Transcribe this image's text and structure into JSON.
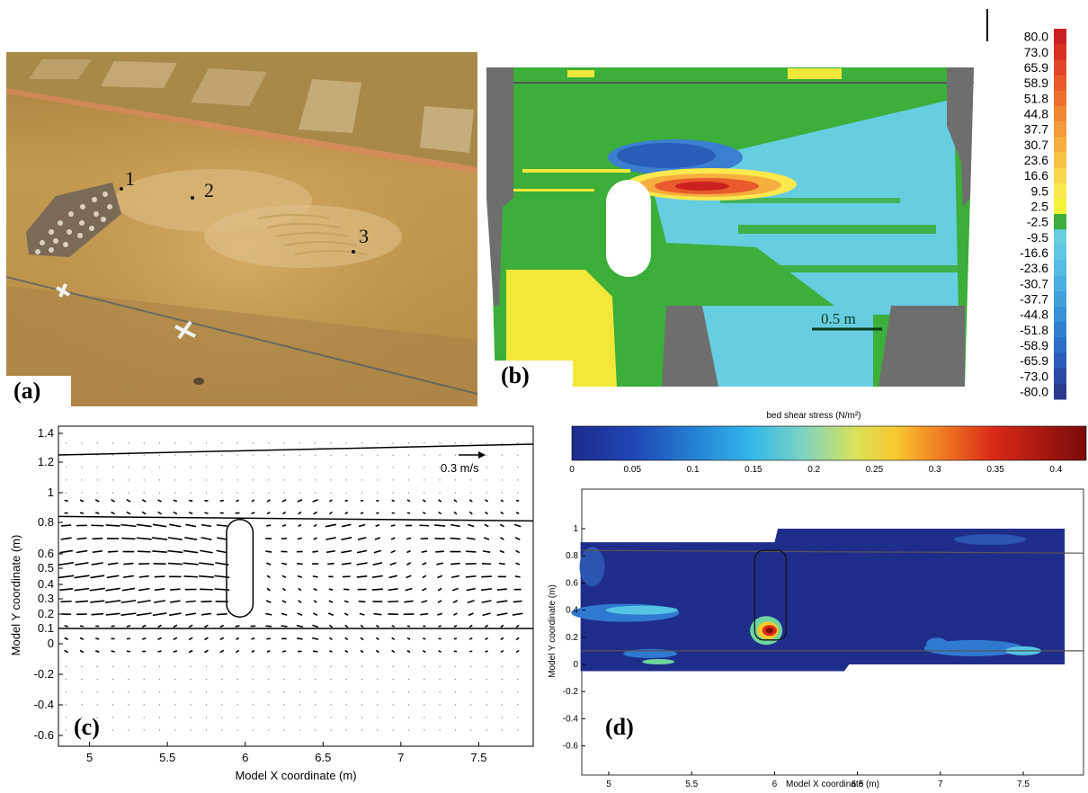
{
  "panel_a": {
    "label": "(a)",
    "markers": [
      "1",
      "2",
      "3"
    ]
  },
  "panel_b": {
    "label": "(b)",
    "scale_label": "0.5 m",
    "colorbar_ticks": [
      "80.0",
      "73.0",
      "65.9",
      "58.9",
      "51.8",
      "44.8",
      "37.7",
      "30.7",
      "23.6",
      "16.6",
      "9.5",
      "2.5",
      "-2.5",
      "-9.5",
      "-16.6",
      "-23.6",
      "-30.7",
      "-37.7",
      "-44.8",
      "-51.8",
      "-58.9",
      "-65.9",
      "-73.0",
      "-80.0"
    ],
    "colorbar_colors": [
      "#cc1f1f",
      "#d93020",
      "#e2452a",
      "#e95a2c",
      "#ee702d",
      "#f18633",
      "#f39a3a",
      "#f6ae3f",
      "#f8c243",
      "#fad649",
      "#fbe94e",
      "#f5f23a",
      "#3cae3a",
      "#67cde1",
      "#5ec5e2",
      "#54bbe2",
      "#4aaee0",
      "#41a0dc",
      "#3890d6",
      "#3080cf",
      "#2b6fc4",
      "#2a5db7",
      "#2a4aa5",
      "#283a8f"
    ]
  },
  "panel_c": {
    "label": "(c)",
    "xlabel": "Model X coordinate (m)",
    "ylabel": "Model Y coordinate (m)",
    "xticks": [
      "5",
      "5.5",
      "6",
      "6.5",
      "7",
      "7.5"
    ],
    "yticks": [
      "1.4",
      "1.2",
      "1",
      "0.8",
      "0.6",
      "0.5",
      "0.4",
      "0.3",
      "0.2",
      "0.1",
      "0",
      "-0.2",
      "-0.4",
      "-0.6"
    ],
    "legend_label": "0.3 m/s"
  },
  "panel_d": {
    "label": "(d)",
    "colorbar_title": "bed shear stress (N/m²)",
    "colorbar_ticks": [
      "0",
      "0.05",
      "0.1",
      "0.15",
      "0.2",
      "0.25",
      "0.3",
      "0.35",
      "0.4"
    ],
    "xlabel": "Model X coordinate (m)",
    "ylabel": "Model Y coordinate (m)",
    "xticks": [
      "5",
      "5.5",
      "6",
      "6.5",
      "7",
      "7.5"
    ],
    "yticks": [
      "1",
      "0.8",
      "0.6",
      "0.4",
      "0.2",
      "0",
      "-0.2",
      "-0.4",
      "-0.6"
    ]
  },
  "colors": {
    "sand": "#c69a52",
    "green": "#3cae3a",
    "lightblue": "#67cde1",
    "grey": "#6e6e6e",
    "yellow": "#f3e83a",
    "navy": "#1f2d8a"
  }
}
